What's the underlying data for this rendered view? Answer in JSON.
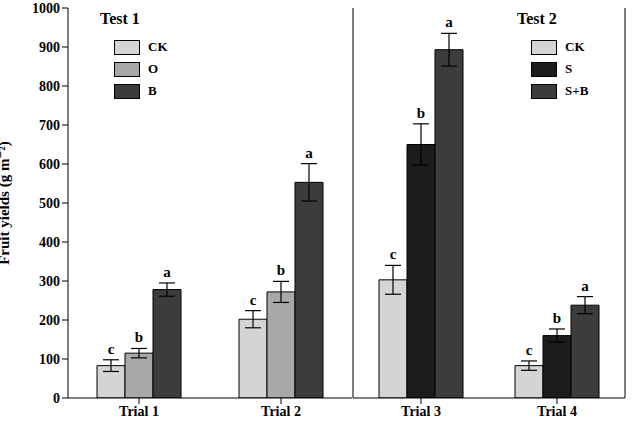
{
  "chart_data": [
    {
      "type": "bar",
      "title": "Test 1",
      "ylabel": "Fruit yields (g m⁻²)",
      "categories": [
        "Trial 1",
        "Trial 2"
      ],
      "ylim": [
        0,
        1000
      ],
      "yticks": [
        0,
        100,
        200,
        300,
        400,
        500,
        600,
        700,
        800,
        900,
        1000
      ],
      "legend": "upper left",
      "series": [
        {
          "name": "CK",
          "color": "#d4d4d4",
          "values": [
            83,
            202
          ],
          "errors": [
            15,
            22
          ],
          "letters": [
            "c",
            "c"
          ]
        },
        {
          "name": "O",
          "color": "#a8a8a8",
          "values": [
            115,
            272
          ],
          "errors": [
            12,
            27
          ],
          "letters": [
            "b",
            "b"
          ]
        },
        {
          "name": "B",
          "color": "#3c3c3c",
          "values": [
            278,
            553
          ],
          "errors": [
            17,
            48
          ],
          "letters": [
            "a",
            "a"
          ]
        }
      ]
    },
    {
      "type": "bar",
      "title": "Test 2",
      "categories": [
        "Trial 3",
        "Trial 4"
      ],
      "ylim": [
        0,
        1000
      ],
      "yticks": [
        0,
        100,
        200,
        300,
        400,
        500,
        600,
        700,
        800,
        900,
        1000
      ],
      "tick_labels": "x",
      "legend": "upper left",
      "series": [
        {
          "name": "CK",
          "color": "#d4d4d4",
          "values": [
            303,
            83
          ],
          "errors": [
            37,
            12
          ],
          "letters": [
            "c",
            "c"
          ]
        },
        {
          "name": "S",
          "color": "#1c1c1c",
          "values": [
            650,
            160
          ],
          "errors": [
            53,
            17
          ],
          "letters": [
            "b",
            "b"
          ]
        },
        {
          "name": "S+B",
          "color": "#3c3c3c",
          "values": [
            893,
            238
          ],
          "errors": [
            42,
            22
          ],
          "letters": [
            "a",
            "a"
          ]
        }
      ]
    }
  ]
}
